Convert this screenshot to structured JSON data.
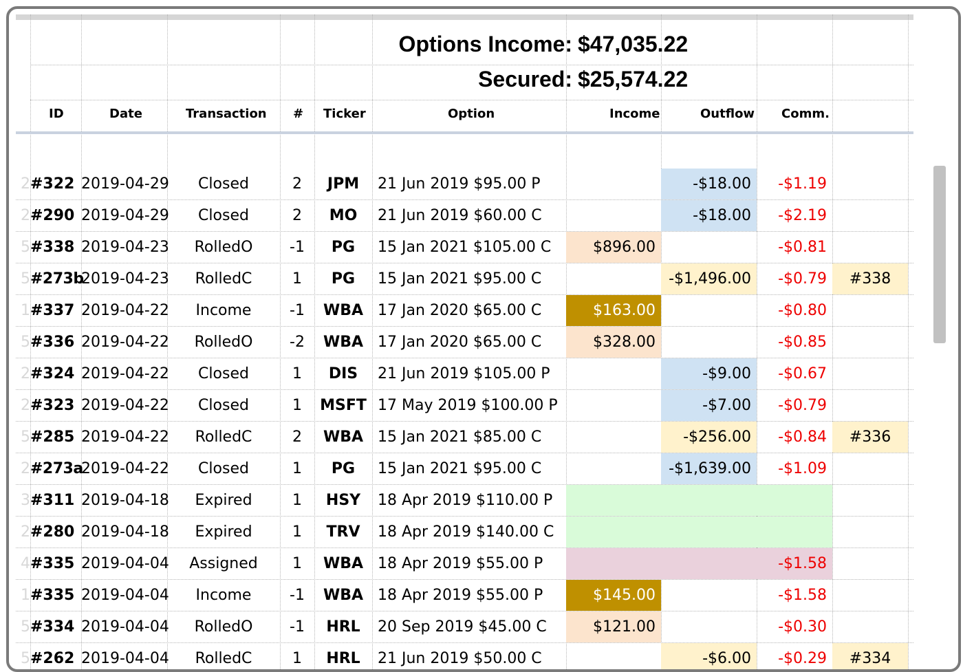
{
  "summary": {
    "income_label": "Options Income:",
    "income_value": "$47,035.22",
    "secured_label": "Secured:",
    "secured_value": "$25,574.22"
  },
  "columns": {
    "id": "ID",
    "date": "Date",
    "transaction": "Transaction",
    "num": "#",
    "ticker": "Ticker",
    "option": "Option",
    "income": "Income",
    "outflow": "Outflow",
    "comm": "Comm."
  },
  "colors": {
    "income_light": "#fce4cd",
    "income_dark": "#bf9000",
    "outflow_blue": "#cfe2f3",
    "outflow_yellow": "#fff2cc",
    "link_yellow": "#fff2cc",
    "expired_green": "#d9fbd9",
    "assigned_pink": "#ead1dc",
    "commission_red": "#ee0000"
  },
  "rows": [
    {
      "rownum": "2",
      "id": "#322",
      "date": "2019-04-29",
      "transaction": "Closed",
      "num": "2",
      "ticker": "JPM",
      "option": "21 Jun 2019 $95.00 P",
      "income": "",
      "outflow": "-$18.00",
      "comm": "-$1.19",
      "link": "",
      "style": "closed"
    },
    {
      "rownum": "2",
      "id": "#290",
      "date": "2019-04-29",
      "transaction": "Closed",
      "num": "2",
      "ticker": "MO",
      "option": "21 Jun 2019 $60.00 C",
      "income": "",
      "outflow": "-$18.00",
      "comm": "-$2.19",
      "link": "",
      "style": "closed"
    },
    {
      "rownum": "5",
      "id": "#338",
      "date": "2019-04-23",
      "transaction": "RolledO",
      "num": "-1",
      "ticker": "PG",
      "option": "15 Jan 2021 $105.00 C",
      "income": "$896.00",
      "outflow": "",
      "comm": "-$0.81",
      "link": "",
      "style": "rolledo"
    },
    {
      "rownum": "5",
      "id": "#273b",
      "date": "2019-04-23",
      "transaction": "RolledC",
      "num": "1",
      "ticker": "PG",
      "option": "15 Jan 2021 $95.00 C",
      "income": "",
      "outflow": "-$1,496.00",
      "comm": "-$0.79",
      "link": "#338",
      "style": "rolledc"
    },
    {
      "rownum": "1",
      "id": "#337",
      "date": "2019-04-22",
      "transaction": "Income",
      "num": "-1",
      "ticker": "WBA",
      "option": "17 Jan 2020 $65.00 C",
      "income": "$163.00",
      "outflow": "",
      "comm": "-$0.80",
      "link": "",
      "style": "income"
    },
    {
      "rownum": "5",
      "id": "#336",
      "date": "2019-04-22",
      "transaction": "RolledO",
      "num": "-2",
      "ticker": "WBA",
      "option": "17 Jan 2020 $65.00 C",
      "income": "$328.00",
      "outflow": "",
      "comm": "-$0.85",
      "link": "",
      "style": "rolledo"
    },
    {
      "rownum": "2",
      "id": "#324",
      "date": "2019-04-22",
      "transaction": "Closed",
      "num": "1",
      "ticker": "DIS",
      "option": "21 Jun 2019 $105.00 P",
      "income": "",
      "outflow": "-$9.00",
      "comm": "-$0.67",
      "link": "",
      "style": "closed"
    },
    {
      "rownum": "2",
      "id": "#323",
      "date": "2019-04-22",
      "transaction": "Closed",
      "num": "1",
      "ticker": "MSFT",
      "option": "17 May 2019 $100.00 P",
      "income": "",
      "outflow": "-$7.00",
      "comm": "-$0.79",
      "link": "",
      "style": "closed"
    },
    {
      "rownum": "5",
      "id": "#285",
      "date": "2019-04-22",
      "transaction": "RolledC",
      "num": "2",
      "ticker": "WBA",
      "option": "15 Jan 2021 $85.00 C",
      "income": "",
      "outflow": "-$256.00",
      "comm": "-$0.84",
      "link": "#336",
      "style": "rolledc"
    },
    {
      "rownum": "2",
      "id": "#273a",
      "date": "2019-04-22",
      "transaction": "Closed",
      "num": "1",
      "ticker": "PG",
      "option": "15 Jan 2021 $95.00 C",
      "income": "",
      "outflow": "-$1,639.00",
      "comm": "-$1.09",
      "link": "",
      "style": "closed"
    },
    {
      "rownum": "3",
      "id": "#311",
      "date": "2019-04-18",
      "transaction": "Expired",
      "num": "1",
      "ticker": "HSY",
      "option": "18 Apr 2019 $110.00 P",
      "income": "",
      "outflow": "",
      "comm": "",
      "link": "",
      "style": "expired"
    },
    {
      "rownum": "2",
      "id": "#280",
      "date": "2019-04-18",
      "transaction": "Expired",
      "num": "1",
      "ticker": "TRV",
      "option": "18 Apr 2019 $140.00 C",
      "income": "",
      "outflow": "",
      "comm": "",
      "link": "",
      "style": "expired"
    },
    {
      "rownum": "4",
      "id": "#335",
      "date": "2019-04-04",
      "transaction": "Assigned",
      "num": "1",
      "ticker": "WBA",
      "option": "18 Apr 2019 $55.00 P",
      "income": "",
      "outflow": "",
      "comm": "-$1.58",
      "link": "",
      "style": "assigned"
    },
    {
      "rownum": "1",
      "id": "#335",
      "date": "2019-04-04",
      "transaction": "Income",
      "num": "-1",
      "ticker": "WBA",
      "option": "18 Apr 2019 $55.00 P",
      "income": "$145.00",
      "outflow": "",
      "comm": "-$1.58",
      "link": "",
      "style": "income"
    },
    {
      "rownum": "5",
      "id": "#334",
      "date": "2019-04-04",
      "transaction": "RolledO",
      "num": "-1",
      "ticker": "HRL",
      "option": "20 Sep 2019 $45.00 C",
      "income": "$121.00",
      "outflow": "",
      "comm": "-$0.30",
      "link": "",
      "style": "rolledo"
    },
    {
      "rownum": "5",
      "id": "#262",
      "date": "2019-04-04",
      "transaction": "RolledC",
      "num": "1",
      "ticker": "HRL",
      "option": "21 Jun 2019 $50.00 C",
      "income": "",
      "outflow": "-$6.00",
      "comm": "-$0.29",
      "link": "#334",
      "style": "rolledc"
    }
  ]
}
